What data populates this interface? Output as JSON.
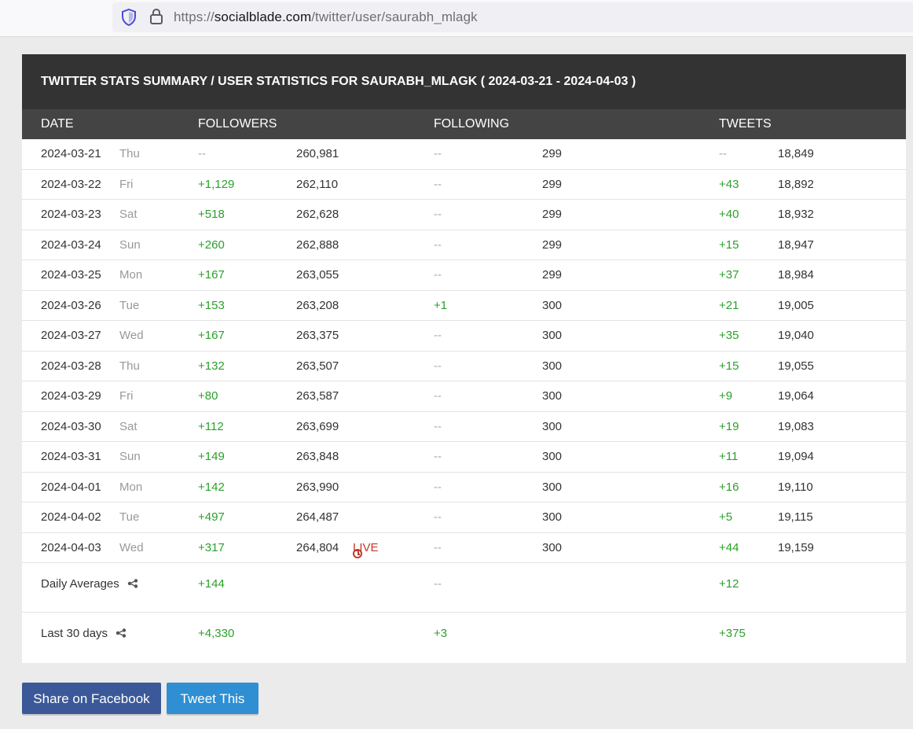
{
  "browser": {
    "url_prefix": "https://",
    "url_domain": "socialblade.com",
    "url_path": "/twitter/user/saurabh_mlagk"
  },
  "card": {
    "title": "TWITTER STATS SUMMARY / USER STATISTICS FOR SAURABH_MLAGK ( 2024-03-21 - 2024-04-03 )",
    "columns": {
      "date": "DATE",
      "followers": "FOLLOWERS",
      "following": "FOLLOWING",
      "tweets": "TWEETS"
    },
    "rows": [
      {
        "date": "2024-03-21",
        "day": "Thu",
        "followers_change": "--",
        "followers": "260,981",
        "following_change": "--",
        "following": "299",
        "tweets_change": "--",
        "tweets": "18,849"
      },
      {
        "date": "2024-03-22",
        "day": "Fri",
        "followers_change": "+1,129",
        "followers": "262,110",
        "following_change": "--",
        "following": "299",
        "tweets_change": "+43",
        "tweets": "18,892"
      },
      {
        "date": "2024-03-23",
        "day": "Sat",
        "followers_change": "+518",
        "followers": "262,628",
        "following_change": "--",
        "following": "299",
        "tweets_change": "+40",
        "tweets": "18,932"
      },
      {
        "date": "2024-03-24",
        "day": "Sun",
        "followers_change": "+260",
        "followers": "262,888",
        "following_change": "--",
        "following": "299",
        "tweets_change": "+15",
        "tweets": "18,947"
      },
      {
        "date": "2024-03-25",
        "day": "Mon",
        "followers_change": "+167",
        "followers": "263,055",
        "following_change": "--",
        "following": "299",
        "tweets_change": "+37",
        "tweets": "18,984"
      },
      {
        "date": "2024-03-26",
        "day": "Tue",
        "followers_change": "+153",
        "followers": "263,208",
        "following_change": "+1",
        "following": "300",
        "tweets_change": "+21",
        "tweets": "19,005"
      },
      {
        "date": "2024-03-27",
        "day": "Wed",
        "followers_change": "+167",
        "followers": "263,375",
        "following_change": "--",
        "following": "300",
        "tweets_change": "+35",
        "tweets": "19,040"
      },
      {
        "date": "2024-03-28",
        "day": "Thu",
        "followers_change": "+132",
        "followers": "263,507",
        "following_change": "--",
        "following": "300",
        "tweets_change": "+15",
        "tweets": "19,055"
      },
      {
        "date": "2024-03-29",
        "day": "Fri",
        "followers_change": "+80",
        "followers": "263,587",
        "following_change": "--",
        "following": "300",
        "tweets_change": "+9",
        "tweets": "19,064"
      },
      {
        "date": "2024-03-30",
        "day": "Sat",
        "followers_change": "+112",
        "followers": "263,699",
        "following_change": "--",
        "following": "300",
        "tweets_change": "+19",
        "tweets": "19,083"
      },
      {
        "date": "2024-03-31",
        "day": "Sun",
        "followers_change": "+149",
        "followers": "263,848",
        "following_change": "--",
        "following": "300",
        "tweets_change": "+11",
        "tweets": "19,094"
      },
      {
        "date": "2024-04-01",
        "day": "Mon",
        "followers_change": "+142",
        "followers": "263,990",
        "following_change": "--",
        "following": "300",
        "tweets_change": "+16",
        "tweets": "19,110"
      },
      {
        "date": "2024-04-02",
        "day": "Tue",
        "followers_change": "+497",
        "followers": "264,487",
        "following_change": "--",
        "following": "300",
        "tweets_change": "+5",
        "tweets": "19,115"
      },
      {
        "date": "2024-04-03",
        "day": "Wed",
        "followers_change": "+317",
        "followers": "264,804",
        "live": "LIVE",
        "following_change": "--",
        "following": "300",
        "tweets_change": "+44",
        "tweets": "19,159"
      }
    ],
    "daily_averages": {
      "label": "Daily Averages",
      "followers": "+144",
      "following": "--",
      "tweets": "+12"
    },
    "last_30_days": {
      "label": "Last 30 days",
      "followers": "+4,330",
      "following": "+3",
      "tweets": "+375"
    }
  },
  "buttons": {
    "facebook": "Share on Facebook",
    "twitter": "Tweet This"
  },
  "colors": {
    "positive": "#2ca02c",
    "live": "#c0392b",
    "header_dark": "#333333",
    "header_mid": "#444444",
    "facebook": "#3b5998",
    "twitter": "#2f8fd2"
  }
}
